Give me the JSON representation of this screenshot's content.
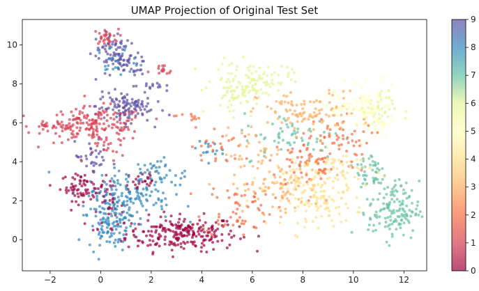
{
  "chart_data": {
    "type": "scatter",
    "title": "UMAP Projection of Original Test Set",
    "xlabel": "",
    "ylabel": "",
    "xlim": [
      -3.1,
      12.9
    ],
    "ylim": [
      -1.6,
      11.3
    ],
    "x_ticks": [
      -2,
      0,
      2,
      4,
      6,
      8,
      10,
      12
    ],
    "y_ticks": [
      0,
      2,
      4,
      6,
      8,
      10
    ],
    "grid": false,
    "colormap": "Spectral",
    "colorbar": {
      "min": 0,
      "max": 9,
      "ticks": [
        0,
        1,
        2,
        3,
        4,
        5,
        6,
        7,
        8,
        9
      ]
    },
    "point_alpha": 0.7,
    "class_colors": [
      "#9e0142",
      "#d53e4f",
      "#f46d43",
      "#fdae61",
      "#fee08b",
      "#ffffbf",
      "#e6f598",
      "#66c2a5",
      "#3288bd",
      "#5e4fa2"
    ],
    "clusters": [
      {
        "label": 0,
        "regions": [
          {
            "cx": 3.2,
            "cy": 0.3,
            "sx": 1.1,
            "sy": 0.45,
            "n": 230
          },
          {
            "cx": -0.7,
            "cy": 2.7,
            "sx": 0.45,
            "sy": 0.35,
            "n": 70
          },
          {
            "cx": 0.3,
            "cy": 1.6,
            "sx": 0.3,
            "sy": 0.6,
            "n": 30
          },
          {
            "cx": 1.6,
            "cy": 3.0,
            "sx": 0.35,
            "sy": 0.35,
            "n": 25
          }
        ]
      },
      {
        "label": 1,
        "regions": [
          {
            "cx": -0.2,
            "cy": 5.9,
            "sx": 1.0,
            "sy": 0.45,
            "n": 170
          },
          {
            "cx": -1.9,
            "cy": 5.8,
            "sx": 0.45,
            "sy": 0.12,
            "n": 25
          },
          {
            "cx": 0.2,
            "cy": 10.4,
            "sx": 0.25,
            "sy": 0.2,
            "n": 30
          },
          {
            "cx": 2.4,
            "cy": 8.6,
            "sx": 0.25,
            "sy": 0.2,
            "n": 14
          },
          {
            "cx": 0.3,
            "cy": 4.6,
            "sx": 0.3,
            "sy": 0.3,
            "n": 15
          }
        ]
      },
      {
        "label": 2,
        "regions": [
          {
            "cx": 8.4,
            "cy": 4.0,
            "sx": 0.9,
            "sy": 0.7,
            "n": 75
          },
          {
            "cx": 5.4,
            "cy": 1.6,
            "sx": 0.7,
            "sy": 0.7,
            "n": 60
          },
          {
            "cx": 9.3,
            "cy": 5.3,
            "sx": 0.7,
            "sy": 0.5,
            "n": 45
          },
          {
            "cx": 4.6,
            "cy": 4.8,
            "sx": 0.5,
            "sy": 0.5,
            "n": 25
          },
          {
            "cx": 3.4,
            "cy": 6.3,
            "sx": 0.25,
            "sy": 0.1,
            "n": 10
          }
        ]
      },
      {
        "label": 3,
        "regions": [
          {
            "cx": 8.2,
            "cy": 6.5,
            "sx": 1.0,
            "sy": 0.55,
            "n": 100
          },
          {
            "cx": 7.0,
            "cy": 2.6,
            "sx": 0.9,
            "sy": 0.6,
            "n": 75
          },
          {
            "cx": 6.0,
            "cy": 4.4,
            "sx": 0.6,
            "sy": 0.6,
            "n": 35
          }
        ]
      },
      {
        "label": 4,
        "regions": [
          {
            "cx": 8.8,
            "cy": 1.9,
            "sx": 0.8,
            "sy": 0.6,
            "n": 100
          },
          {
            "cx": 8.0,
            "cy": 3.3,
            "sx": 0.8,
            "sy": 0.6,
            "n": 60
          },
          {
            "cx": 9.6,
            "cy": 3.6,
            "sx": 0.6,
            "sy": 0.5,
            "n": 40
          }
        ]
      },
      {
        "label": 5,
        "regions": [
          {
            "cx": 10.7,
            "cy": 6.7,
            "sx": 0.5,
            "sy": 0.55,
            "n": 70
          },
          {
            "cx": 9.5,
            "cy": 6.9,
            "sx": 0.5,
            "sy": 0.5,
            "n": 30
          },
          {
            "cx": 11.0,
            "cy": 5.8,
            "sx": 0.3,
            "sy": 0.3,
            "n": 15
          }
        ]
      },
      {
        "label": 6,
        "regions": [
          {
            "cx": 6.0,
            "cy": 8.2,
            "sx": 0.75,
            "sy": 0.45,
            "n": 110
          },
          {
            "cx": 5.2,
            "cy": 7.2,
            "sx": 0.45,
            "sy": 0.4,
            "n": 35
          },
          {
            "cx": 10.8,
            "cy": 6.7,
            "sx": 0.45,
            "sy": 0.45,
            "n": 40
          }
        ]
      },
      {
        "label": 7,
        "regions": [
          {
            "cx": 11.6,
            "cy": 1.5,
            "sx": 0.5,
            "sy": 0.75,
            "n": 140
          },
          {
            "cx": 10.7,
            "cy": 3.5,
            "sx": 0.3,
            "sy": 0.6,
            "n": 45
          },
          {
            "cx": 7.6,
            "cy": 5.3,
            "sx": 1.0,
            "sy": 0.6,
            "n": 60
          }
        ]
      },
      {
        "label": 8,
        "regions": [
          {
            "cx": 1.0,
            "cy": 2.2,
            "sx": 0.9,
            "sy": 0.6,
            "n": 140
          },
          {
            "cx": 0.4,
            "cy": 0.8,
            "sx": 0.45,
            "sy": 0.6,
            "n": 100
          },
          {
            "cx": 2.2,
            "cy": 3.4,
            "sx": 0.6,
            "sy": 0.4,
            "n": 45
          },
          {
            "cx": 0.6,
            "cy": 9.2,
            "sx": 0.4,
            "sy": 0.4,
            "n": 30
          },
          {
            "cx": 4.2,
            "cy": 4.6,
            "sx": 0.3,
            "sy": 0.3,
            "n": 15
          }
        ]
      },
      {
        "label": 9,
        "regions": [
          {
            "cx": 0.9,
            "cy": 6.8,
            "sx": 0.55,
            "sy": 0.4,
            "n": 110
          },
          {
            "cx": 0.5,
            "cy": 9.6,
            "sx": 0.4,
            "sy": 0.5,
            "n": 60
          },
          {
            "cx": 1.1,
            "cy": 9.0,
            "sx": 0.35,
            "sy": 0.3,
            "n": 30
          },
          {
            "cx": -0.3,
            "cy": 4.2,
            "sx": 0.35,
            "sy": 0.4,
            "n": 30
          },
          {
            "cx": 1.9,
            "cy": 7.9,
            "sx": 0.3,
            "sy": 0.15,
            "n": 15
          }
        ]
      }
    ]
  }
}
